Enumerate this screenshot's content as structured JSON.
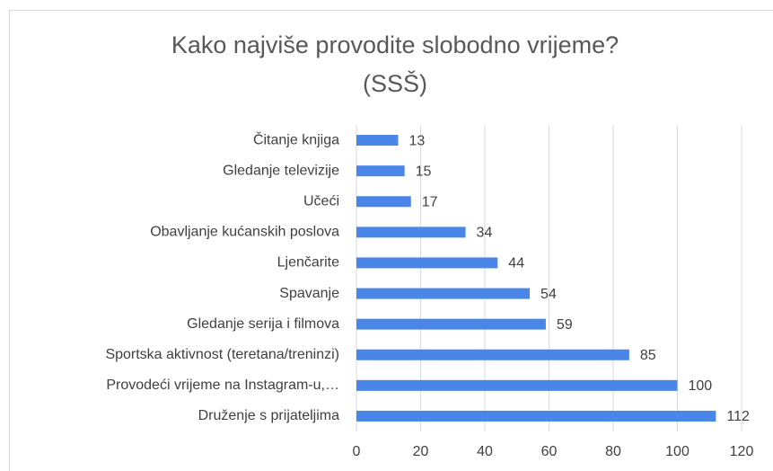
{
  "chart_data": {
    "type": "bar",
    "orientation": "horizontal",
    "title": [
      "Kako najviše provodite slobodno vrijeme?",
      "(SSŠ)"
    ],
    "categories": [
      "Čitanje knjiga",
      "Gledanje televizije",
      "Učeći",
      "Obavljanje kućanskih poslova",
      "Ljenčarite",
      "Spavanje",
      "Gledanje serija i filmova",
      "Sportska aktivnost (teretana/treninzi)",
      "Provodeći vrijeme na Instagram-u,…",
      "Druženje s prijateljima"
    ],
    "values": [
      13,
      15,
      17,
      34,
      44,
      54,
      59,
      85,
      100,
      112
    ],
    "color": "#4a86e8",
    "xlim": [
      0,
      120
    ],
    "xticks": [
      0,
      20,
      40,
      60,
      80,
      100,
      120
    ],
    "grid": true
  }
}
